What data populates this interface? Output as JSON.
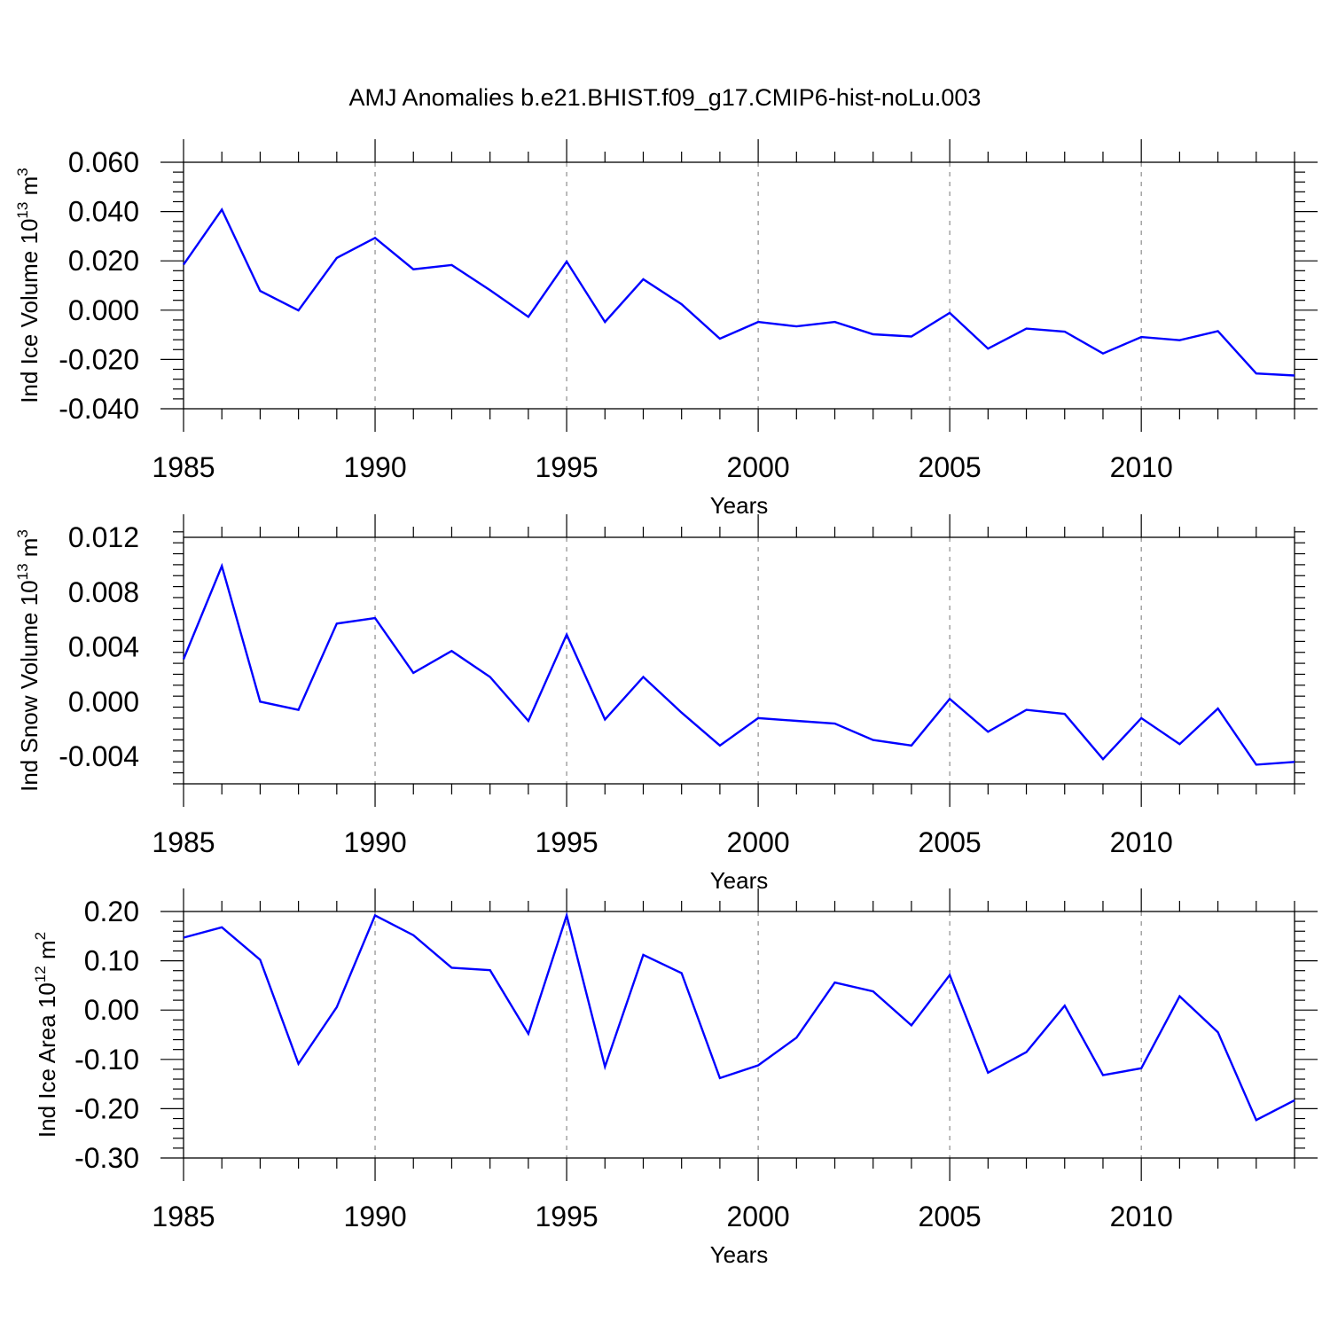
{
  "title": "AMJ Anomalies b.e21.BHIST.f09_g17.CMIP6-hist-noLu.003",
  "colors": {
    "line": "#0000ff",
    "axis": "#000000",
    "grid": "#8c8c8c"
  },
  "chart_data": [
    {
      "type": "line",
      "ylabel": {
        "prefix": "Ind Ice Volume 10",
        "exponent": "13",
        "unit": " m",
        "unit_exponent": "3"
      },
      "xlabel": "Years",
      "xlim": [
        1985,
        2014
      ],
      "ylim": [
        -0.04,
        0.06
      ],
      "yticks": [
        -0.04,
        -0.02,
        0.0,
        0.02,
        0.04,
        0.06
      ],
      "ytick_labels": [
        "-0.040",
        "-0.020",
        "0.000",
        "0.020",
        "0.040",
        "0.060"
      ],
      "xticks": [
        1985,
        1990,
        1995,
        2000,
        2005,
        2010
      ],
      "xtick_labels": [
        "1985",
        "1990",
        "1995",
        "2000",
        "2005",
        "2010"
      ],
      "grid": "vertical dashed at major x ticks",
      "series": [
        {
          "name": "Ind Ice Volume",
          "x": [
            1985,
            1986,
            1987,
            1988,
            1989,
            1990,
            1991,
            1992,
            1993,
            1994,
            1995,
            1996,
            1997,
            1998,
            1999,
            2000,
            2001,
            2002,
            2003,
            2004,
            2005,
            2006,
            2007,
            2008,
            2009,
            2010,
            2011,
            2012,
            2013,
            2014
          ],
          "values": [
            0.0185,
            0.0408,
            0.0078,
            -0.0001,
            0.0212,
            0.0293,
            0.0166,
            0.0183,
            0.0081,
            -0.0027,
            0.0197,
            -0.0048,
            0.0125,
            0.0024,
            -0.0116,
            -0.0048,
            -0.0066,
            -0.0048,
            -0.0098,
            -0.0107,
            -0.0011,
            -0.0156,
            -0.0075,
            -0.0087,
            -0.0176,
            -0.0109,
            -0.0122,
            -0.0085,
            -0.0257,
            -0.0265
          ]
        }
      ]
    },
    {
      "type": "line",
      "ylabel": {
        "prefix": "Ind Snow Volume 10",
        "exponent": "13",
        "unit": " m",
        "unit_exponent": "3"
      },
      "xlabel": "Years",
      "xlim": [
        1985,
        2014
      ],
      "ylim": [
        -0.006,
        0.012
      ],
      "yticks": [
        -0.004,
        0.0,
        0.004,
        0.008,
        0.012
      ],
      "ytick_labels": [
        "-0.004",
        "0.000",
        "0.004",
        "0.008",
        "0.012"
      ],
      "xticks": [
        1985,
        1990,
        1995,
        2000,
        2005,
        2010
      ],
      "xtick_labels": [
        "1985",
        "1990",
        "1995",
        "2000",
        "2005",
        "2010"
      ],
      "grid": "vertical dashed at major x ticks",
      "series": [
        {
          "name": "Ind Snow Volume",
          "x": [
            1985,
            1986,
            1987,
            1988,
            1989,
            1990,
            1991,
            1992,
            1993,
            1994,
            1995,
            1996,
            1997,
            1998,
            1999,
            2000,
            2001,
            2002,
            2003,
            2004,
            2005,
            2006,
            2007,
            2008,
            2009,
            2010,
            2011,
            2012,
            2013,
            2014
          ],
          "values": [
            0.0031,
            0.0099,
            0.0,
            -0.0006,
            0.0057,
            0.0061,
            0.0021,
            0.0037,
            0.0018,
            -0.0014,
            0.0049,
            -0.0013,
            0.0018,
            -0.0008,
            -0.0032,
            -0.0012,
            -0.0014,
            -0.0016,
            -0.0028,
            -0.0032,
            0.0002,
            -0.0022,
            -0.0006,
            -0.0009,
            -0.0042,
            -0.0012,
            -0.0031,
            -0.0005,
            -0.0046,
            -0.0044
          ]
        }
      ]
    },
    {
      "type": "line",
      "ylabel": {
        "prefix": "Ind Ice Area 10",
        "exponent": "12",
        "unit": " m",
        "unit_exponent": "2"
      },
      "xlabel": "Years",
      "xlim": [
        1985,
        2014
      ],
      "ylim": [
        -0.3,
        0.2
      ],
      "yticks": [
        -0.3,
        -0.2,
        -0.1,
        0.0,
        0.1,
        0.2
      ],
      "ytick_labels": [
        "-0.30",
        "-0.20",
        "-0.10",
        "0.00",
        "0.10",
        "0.20"
      ],
      "xticks": [
        1985,
        1990,
        1995,
        2000,
        2005,
        2010
      ],
      "xtick_labels": [
        "1985",
        "1990",
        "1995",
        "2000",
        "2005",
        "2010"
      ],
      "grid": "vertical dashed at major x ticks",
      "series": [
        {
          "name": "Ind Ice Area",
          "x": [
            1985,
            1986,
            1987,
            1988,
            1989,
            1990,
            1991,
            1992,
            1993,
            1994,
            1995,
            1996,
            1997,
            1998,
            1999,
            2000,
            2001,
            2002,
            2003,
            2004,
            2005,
            2006,
            2007,
            2008,
            2009,
            2010,
            2011,
            2012,
            2013,
            2014
          ],
          "values": [
            0.147,
            0.168,
            0.102,
            -0.109,
            0.006,
            0.192,
            0.152,
            0.086,
            0.081,
            -0.048,
            0.192,
            -0.115,
            0.112,
            0.075,
            -0.138,
            -0.112,
            -0.056,
            0.056,
            0.038,
            -0.031,
            0.071,
            -0.127,
            -0.085,
            0.009,
            -0.132,
            -0.118,
            0.028,
            -0.045,
            -0.223,
            -0.183
          ]
        }
      ]
    }
  ]
}
